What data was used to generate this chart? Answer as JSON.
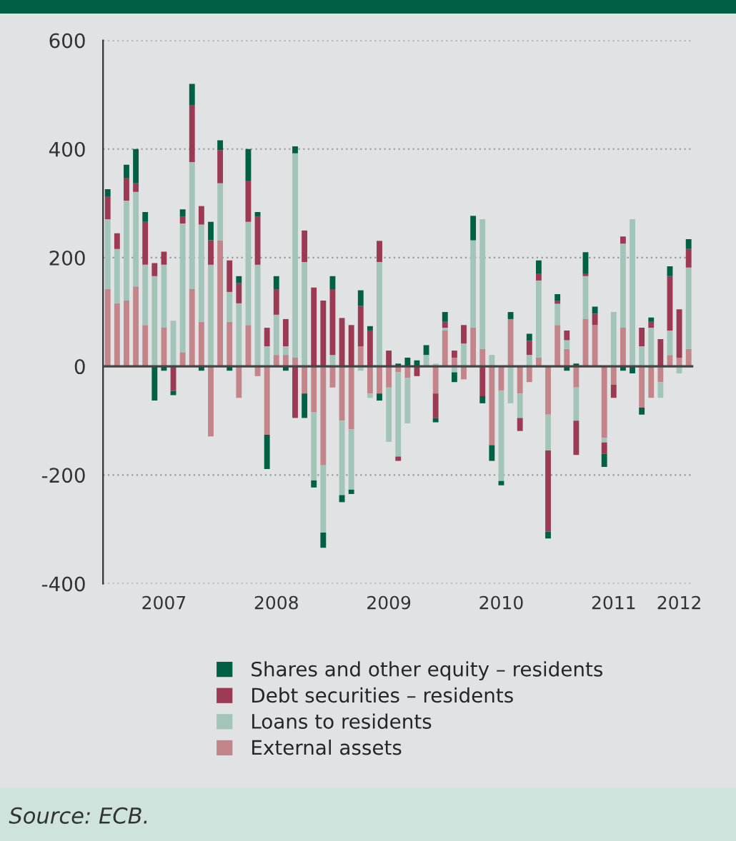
{
  "chart_data": {
    "type": "bar",
    "stacked": true,
    "categories": [
      null,
      null,
      null,
      null,
      null,
      null,
      "2007",
      null,
      null,
      null,
      null,
      null,
      null,
      null,
      null,
      null,
      null,
      null,
      "2008",
      null,
      null,
      null,
      null,
      null,
      null,
      null,
      null,
      null,
      null,
      null,
      "2009",
      null,
      null,
      null,
      null,
      null,
      null,
      null,
      null,
      null,
      null,
      null,
      "2010",
      null,
      null,
      null,
      null,
      null,
      null,
      null,
      null,
      null,
      null,
      null,
      "2011",
      null,
      null,
      null,
      null,
      null,
      null,
      "2012",
      null
    ],
    "series": [
      {
        "name": "External assets",
        "color": "#c4858a",
        "values": [
          142,
          116,
          121,
          147,
          76,
          0,
          71,
          0,
          26,
          142,
          82,
          -129,
          232,
          82,
          -58,
          76,
          -18,
          -126,
          21,
          21,
          16,
          -50,
          -84,
          -182,
          -39,
          -100,
          -116,
          37,
          -50,
          -50,
          -39,
          -11,
          -21,
          0,
          null,
          -50,
          66,
          16,
          -24,
          71,
          32,
          -145,
          -45,
          87,
          -50,
          -29,
          16,
          -89,
          76,
          32,
          -39,
          87,
          76,
          -132,
          -34,
          71,
          0,
          -76,
          -58,
          -29,
          21,
          16,
          32
        ]
      },
      {
        "name": "Loans to residents",
        "color": "#a3c5b9",
        "values": [
          129,
          100,
          184,
          174,
          111,
          166,
          116,
          84,
          237,
          234,
          179,
          187,
          105,
          55,
          116,
          190,
          187,
          37,
          74,
          16,
          376,
          192,
          -126,
          -124,
          21,
          -137,
          -111,
          -8,
          -8,
          192,
          -100,
          -155,
          -84,
          0,
          21,
          5,
          5,
          -11,
          42,
          161,
          239,
          21,
          -166,
          -68,
          -45,
          21,
          142,
          -66,
          39,
          16,
          -61,
          79,
          0,
          -8,
          100,
          155,
          271,
          37,
          71,
          -29,
          45,
          -13,
          150
        ]
      },
      {
        "name": "Debt securities – residents",
        "color": "#9b3a52",
        "values": [
          42,
          29,
          42,
          16,
          79,
          24,
          24,
          -45,
          13,
          105,
          34,
          45,
          61,
          58,
          37,
          76,
          89,
          34,
          47,
          50,
          -95,
          58,
          145,
          121,
          121,
          89,
          76,
          74,
          66,
          39,
          29,
          -8,
          0,
          -18,
          0,
          -45,
          11,
          13,
          34,
          0,
          -55,
          0,
          0,
          0,
          -24,
          26,
          13,
          -149,
          5,
          18,
          -63,
          5,
          21,
          -21,
          -24,
          13,
          0,
          34,
          11,
          50,
          100,
          89,
          34
        ]
      },
      {
        "name": "Shares and other equity – residents",
        "color": "#006045",
        "values": [
          13,
          0,
          24,
          63,
          18,
          -63,
          -8,
          -8,
          13,
          39,
          -8,
          34,
          18,
          -8,
          13,
          58,
          8,
          -63,
          24,
          -8,
          13,
          -45,
          -13,
          -28,
          24,
          -13,
          -8,
          29,
          8,
          -13,
          0,
          5,
          16,
          11,
          18,
          -8,
          18,
          -18,
          0,
          45,
          -13,
          -29,
          -8,
          13,
          0,
          13,
          24,
          -13,
          13,
          -8,
          5,
          39,
          13,
          -24,
          0,
          -8,
          -13,
          -13,
          8,
          0,
          18,
          0,
          18
        ]
      }
    ],
    "ylim": [
      -400,
      600
    ],
    "yticks": [
      -400,
      -200,
      0,
      200,
      400,
      600
    ],
    "grid": "y",
    "legend": "bottom",
    "annotations": [
      "Source: ECB."
    ]
  }
}
